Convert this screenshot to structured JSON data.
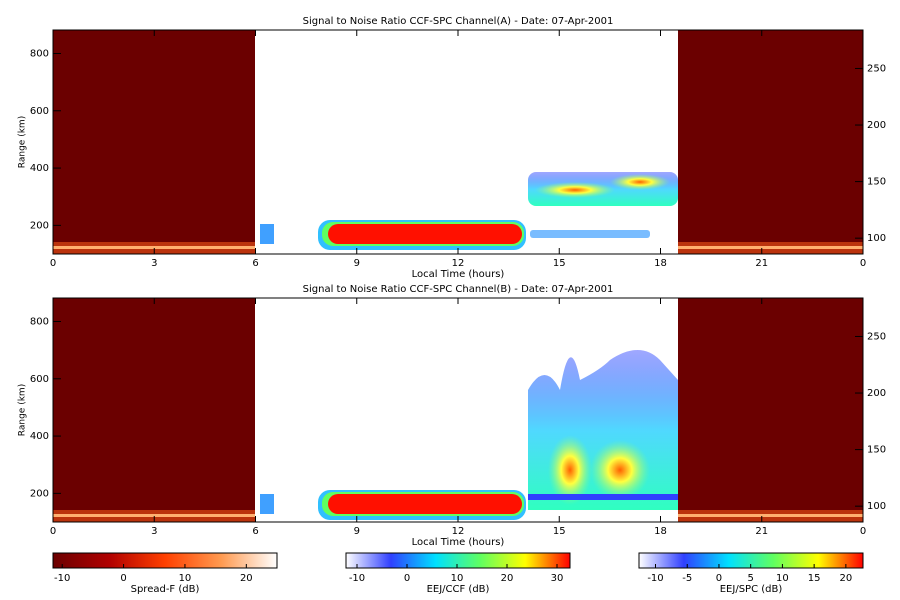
{
  "chart_data": [
    {
      "type": "heatmap",
      "title": "Signal to Noise Ratio CCF-SPC Channel(A) - Date: 07-Apr-2001",
      "xlabel": "Local Time (hours)",
      "ylabel": "Range (km)",
      "xlim": [
        0,
        24
      ],
      "xticks": [
        0,
        3,
        6,
        9,
        12,
        15,
        18,
        21,
        {
          "value": 24,
          "label": "0"
        }
      ],
      "ylim": [
        100,
        882
      ],
      "yticks": [
        200,
        400,
        600,
        800
      ],
      "y2lim": [
        86,
        284
      ],
      "y2ticks": [
        100,
        150,
        200,
        250
      ]
    },
    {
      "type": "heatmap",
      "title": "Signal to Noise Ratio CCF-SPC Channel(B) - Date: 07-Apr-2001",
      "xlabel": "Local Time (hours)",
      "ylabel": "Range (km)",
      "xlim": [
        0,
        24
      ],
      "xticks": [
        0,
        3,
        6,
        9,
        12,
        15,
        18,
        21,
        {
          "value": 24,
          "label": "0"
        }
      ],
      "ylim": [
        100,
        882
      ],
      "yticks": [
        200,
        400,
        600,
        800
      ],
      "y2lim": [
        86,
        284
      ],
      "y2ticks": [
        100,
        150,
        200,
        250
      ]
    }
  ],
  "colorbars": [
    {
      "label": "Spread-F (dB)",
      "lim": [
        -11.5,
        25
      ],
      "ticks": [
        -10,
        0,
        10,
        20
      ],
      "colors": [
        "#6b0000",
        "#b00000",
        "#ff4000",
        "#ff9a50",
        "#ffffff"
      ]
    },
    {
      "label": "EEJ/CCF (dB)",
      "lim": [
        -12.2,
        32.6
      ],
      "ticks": [
        -10,
        0,
        10,
        20,
        30
      ],
      "colors": [
        "#ffffff",
        "#3040ff",
        "#00e0ff",
        "#60ff60",
        "#ffff00",
        "#ff0000"
      ]
    },
    {
      "label": "EEJ/SPC (dB)",
      "lim": [
        -12.6,
        22.7
      ],
      "ticks": [
        -10,
        -5,
        0,
        5,
        10,
        15,
        20
      ],
      "colors": [
        "#ffffff",
        "#3040ff",
        "#00e0ff",
        "#60ff60",
        "#ffff00",
        "#ff0000"
      ]
    }
  ]
}
